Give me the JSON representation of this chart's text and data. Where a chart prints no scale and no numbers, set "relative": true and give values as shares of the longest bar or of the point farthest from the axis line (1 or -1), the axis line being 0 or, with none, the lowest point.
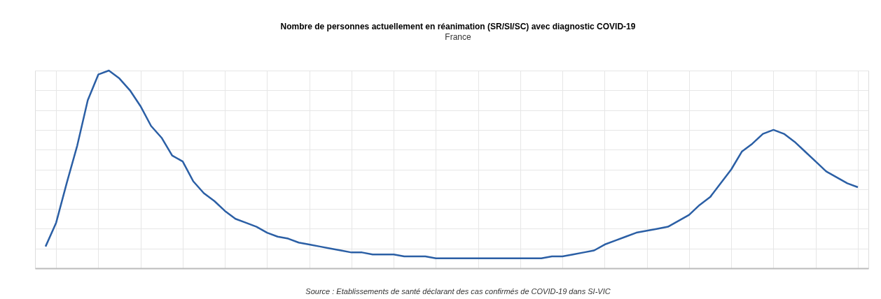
{
  "chart_data": {
    "type": "line",
    "title": "Nombre de personnes actuellement en réanimation (SR/SI/SC) avec diagnostic COVID-19",
    "subtitle": "France",
    "relative": true,
    "grid": true,
    "annotations": [
      "Source : Etablissements de santé déclarant des cas confirmés de COVID-19 dans SI-VIC"
    ],
    "categories": [
      null,
      null,
      null,
      null,
      null,
      null,
      null,
      null,
      null,
      null,
      null,
      null,
      null,
      null,
      null,
      null,
      null,
      null,
      null,
      null,
      null,
      null,
      null,
      null,
      null,
      null,
      null,
      null,
      null,
      null,
      null,
      null,
      null,
      null,
      null,
      null,
      null,
      null,
      null,
      null,
      null,
      null,
      null,
      null,
      null,
      null,
      null,
      null,
      null,
      null,
      null,
      null,
      null,
      null,
      null,
      null,
      null,
      null,
      null,
      null,
      null,
      null,
      null,
      null,
      null,
      null,
      null,
      null,
      null,
      null,
      null,
      null,
      null,
      null,
      null,
      null,
      null,
      null
    ],
    "series": [
      {
        "color": "#2b5fa5",
        "values": [
          0.11,
          0.23,
          0.43,
          0.62,
          0.85,
          0.98,
          1,
          0.96,
          0.9,
          0.82,
          0.72,
          0.66,
          0.57,
          0.54,
          0.44,
          0.38,
          0.34,
          0.29,
          0.25,
          0.23,
          0.21,
          0.18,
          0.16,
          0.15,
          0.13,
          0.12,
          0.11,
          0.1,
          0.09,
          0.08,
          0.08,
          0.07,
          0.07,
          0.07,
          0.06,
          0.06,
          0.06,
          0.05,
          0.05,
          0.05,
          0.05,
          0.05,
          0.05,
          0.05,
          0.05,
          0.05,
          0.05,
          0.05,
          0.06,
          0.06,
          0.07,
          0.08,
          0.09,
          0.12,
          0.14,
          0.16,
          0.18,
          0.19,
          0.2,
          0.21,
          0.24,
          0.27,
          0.32,
          0.36,
          0.43,
          0.5,
          0.59,
          0.63,
          0.68,
          0.7,
          0.68,
          0.64,
          0.59,
          0.54,
          0.49,
          0.46,
          0.43,
          0.41
        ]
      }
    ]
  }
}
